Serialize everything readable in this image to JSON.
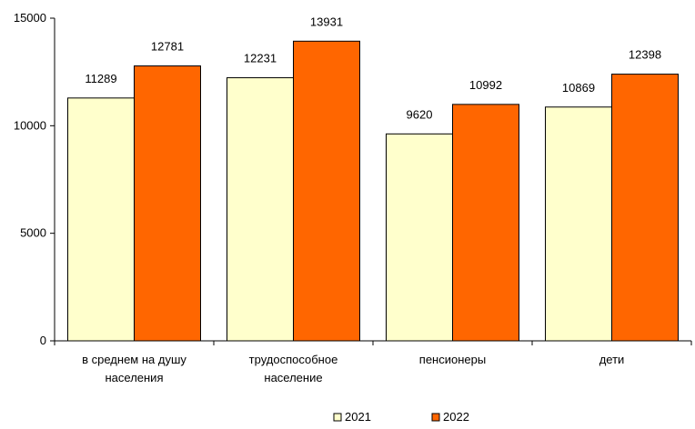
{
  "chart_data": {
    "type": "bar",
    "categories": [
      [
        "в среднем на душу",
        "населения"
      ],
      [
        "трудоспособное",
        "население"
      ],
      [
        "пенсионеры"
      ],
      [
        "дети"
      ]
    ],
    "series": [
      {
        "name": "2021",
        "color": "#FFFFCC",
        "values": [
          11289,
          12231,
          9620,
          10869
        ]
      },
      {
        "name": "2022",
        "color": "#FF6600",
        "values": [
          12781,
          13931,
          10992,
          12398
        ]
      }
    ],
    "ylim": [
      0,
      15000
    ],
    "yticks": [
      0,
      5000,
      10000,
      15000
    ],
    "grid": false,
    "legend": "bottom"
  }
}
